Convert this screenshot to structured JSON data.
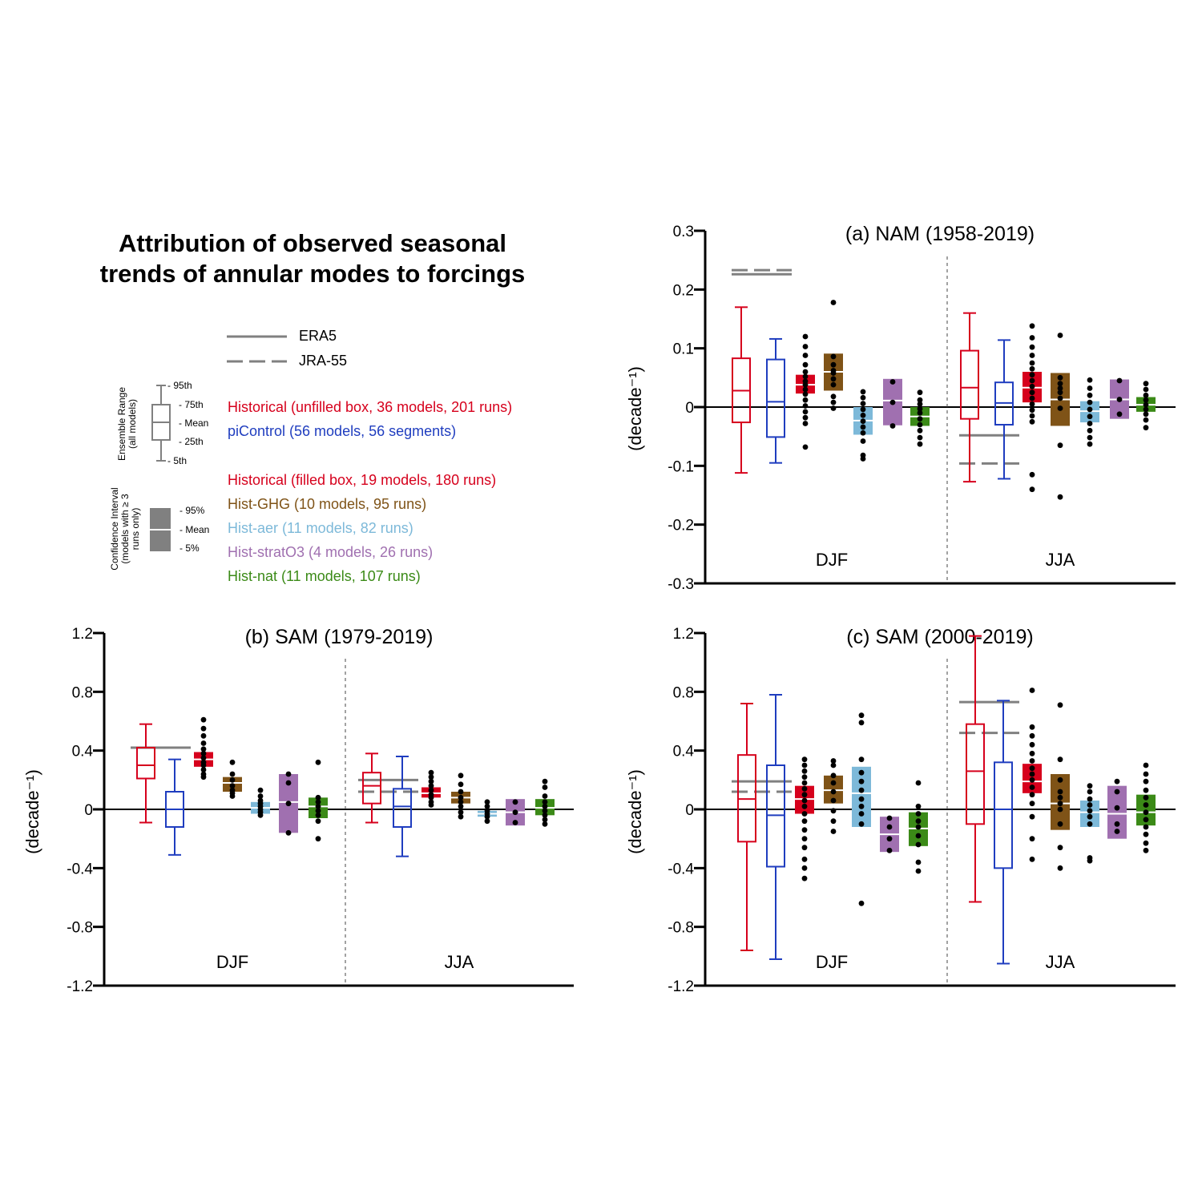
{
  "title": "Attribution of observed seasonal trends of annular modes to forcings",
  "title_lines": [
    "Attribution of observed seasonal",
    "trends of annular modes to forcings"
  ],
  "legend": {
    "observations": [
      {
        "name": "ERA5",
        "style": "solid"
      },
      {
        "name": "JRA-55",
        "style": "dashed"
      }
    ],
    "box_key": {
      "label_lines": [
        "Ensemble Range",
        "(all models)"
      ],
      "marks": [
        "- 95th",
        "- 75th",
        "- Mean",
        "- 25th",
        "- 5th"
      ]
    },
    "ci_key": {
      "label_lines": [
        "Confidence Interval",
        "(models with ≥ 3",
        "runs only)"
      ],
      "marks": [
        "- 95%",
        "- Mean",
        "- 5%"
      ]
    },
    "series": [
      {
        "label": "Historical (unfilled box, 36 models, 201 runs)",
        "color": "#d6001c"
      },
      {
        "label": "piControl (56 models, 56 segments)",
        "color": "#1f3dbf"
      },
      {
        "label": "Historical (filled box, 19 models, 180 runs)",
        "color": "#d6001c"
      },
      {
        "label": "Hist-GHG (10 models, 95 runs)",
        "color": "#7f5317"
      },
      {
        "label": "Hist-aer (11 models, 82 runs)",
        "color": "#7db9d9"
      },
      {
        "label": "Hist-stratO3 (4 models, 26 runs)",
        "color": "#a070b0"
      },
      {
        "label": "Hist-nat (11 models, 107 runs)",
        "color": "#3b8a17"
      }
    ]
  },
  "colors": {
    "historical": "#d6001c",
    "picontrol": "#1f3dbf",
    "ghg": "#7f5317",
    "aer": "#7db9d9",
    "strato3": "#a070b0",
    "nat": "#3b8a17",
    "obs": "#808080"
  },
  "chart_data": [
    {
      "type": "box",
      "title": "(a) NAM (1958-2019)",
      "ylabel": "(decade⁻¹)",
      "ylim": [
        -0.3,
        0.3
      ],
      "yticks": [
        "-0.3",
        "-0.2",
        "-0.1",
        "0",
        "0.1",
        "0.2",
        "0.3"
      ],
      "ytick_values": [
        -0.3,
        -0.2,
        -0.1,
        0,
        0.1,
        0.2,
        0.3
      ],
      "seasons": [
        "DJF",
        "JJA"
      ],
      "groups": [
        {
          "season": "DJF",
          "obs": {
            "era5": 0.226,
            "jra55": 0.233
          },
          "boxes": [
            {
              "series": "historical",
              "p5": -0.112,
              "p25": -0.026,
              "mean": 0.028,
              "p75": 0.083,
              "p95": 0.17
            },
            {
              "series": "picontrol",
              "p5": -0.095,
              "p25": -0.051,
              "mean": 0.009,
              "p75": 0.081,
              "p95": 0.116
            }
          ],
          "ci": [
            {
              "series": "historical",
              "low": 0.023,
              "mean": 0.038,
              "high": 0.055,
              "dots": [
                0.12,
                0.103,
                0.088,
                0.072,
                0.06,
                0.052,
                0.044,
                0.038,
                0.03,
                0.022,
                0.012,
                0.002,
                -0.008,
                -0.018,
                -0.028,
                -0.068
              ]
            },
            {
              "series": "ghg",
              "low": 0.028,
              "mean": 0.06,
              "high": 0.091,
              "dots": [
                0.178,
                0.086,
                0.072,
                0.062,
                0.058,
                0.048,
                0.038,
                0.018,
                0.008,
                -0.002
              ]
            },
            {
              "series": "aer",
              "low": -0.047,
              "mean": -0.023,
              "high": 0.0,
              "dots": [
                0.026,
                0.016,
                0.006,
                -0.004,
                -0.014,
                -0.024,
                -0.034,
                -0.044,
                -0.058,
                -0.082,
                -0.088
              ]
            },
            {
              "series": "strato3",
              "low": -0.031,
              "mean": 0.011,
              "high": 0.048,
              "dots": [
                0.043,
                0.008,
                -0.032
              ]
            },
            {
              "series": "nat",
              "low": -0.032,
              "mean": -0.016,
              "high": 0.0,
              "dots": [
                0.025,
                0.012,
                0.005,
                -0.003,
                -0.01,
                -0.02,
                -0.03,
                -0.04,
                -0.052,
                -0.063
              ]
            }
          ]
        },
        {
          "season": "JJA",
          "obs": {
            "era5": -0.048,
            "jra55": -0.096
          },
          "boxes": [
            {
              "series": "historical",
              "p5": -0.127,
              "p25": -0.02,
              "mean": 0.033,
              "p75": 0.096,
              "p95": 0.16
            },
            {
              "series": "picontrol",
              "p5": -0.122,
              "p25": -0.03,
              "mean": 0.007,
              "p75": 0.042,
              "p95": 0.114
            }
          ],
          "ci": [
            {
              "series": "historical",
              "low": 0.008,
              "mean": 0.033,
              "high": 0.06,
              "dots": [
                0.138,
                0.118,
                0.102,
                0.088,
                0.075,
                0.065,
                0.055,
                0.045,
                0.035,
                0.025,
                0.015,
                0.005,
                -0.005,
                -0.015,
                -0.025,
                -0.115,
                -0.14
              ]
            },
            {
              "series": "ghg",
              "low": -0.032,
              "mean": 0.013,
              "high": 0.058,
              "dots": [
                0.122,
                0.05,
                0.04,
                0.032,
                0.025,
                0.015,
                -0.002,
                -0.065,
                -0.153
              ]
            },
            {
              "series": "aer",
              "low": -0.026,
              "mean": -0.007,
              "high": 0.01,
              "dots": [
                0.046,
                0.032,
                0.02,
                0.008,
                -0.004,
                -0.016,
                -0.028,
                -0.04,
                -0.052,
                -0.063
              ]
            },
            {
              "series": "strato3",
              "low": -0.02,
              "mean": 0.013,
              "high": 0.047,
              "dots": [
                0.045,
                0.013,
                -0.012
              ]
            },
            {
              "series": "nat",
              "low": -0.008,
              "mean": 0.004,
              "high": 0.017,
              "dots": [
                0.04,
                0.03,
                0.02,
                0.012,
                0.004,
                -0.004,
                -0.012,
                -0.022,
                -0.035
              ]
            }
          ]
        }
      ]
    },
    {
      "type": "box",
      "title": "(b) SAM (1979-2019)",
      "ylabel": "(decade⁻¹)",
      "ylim": [
        -1.2,
        1.2
      ],
      "yticks": [
        "-1.2",
        "-0.8",
        "-0.4",
        "0",
        "0.4",
        "0.8",
        "1.2"
      ],
      "ytick_values": [
        -1.2,
        -0.8,
        -0.4,
        0,
        0.4,
        0.8,
        1.2
      ],
      "seasons": [
        "DJF",
        "JJA"
      ],
      "groups": [
        {
          "season": "DJF",
          "obs": {
            "era5": 0.42,
            "jra55": 0.42
          },
          "boxes": [
            {
              "series": "historical",
              "p5": -0.09,
              "p25": 0.21,
              "mean": 0.3,
              "p75": 0.42,
              "p95": 0.58
            },
            {
              "series": "picontrol",
              "p5": -0.31,
              "p25": -0.12,
              "mean": 0.0,
              "p75": 0.12,
              "p95": 0.34
            }
          ],
          "ci": [
            {
              "series": "historical",
              "low": 0.29,
              "mean": 0.34,
              "high": 0.39,
              "dots": [
                0.61,
                0.55,
                0.5,
                0.45,
                0.41,
                0.38,
                0.35,
                0.32,
                0.3,
                0.27,
                0.24,
                0.22
              ]
            },
            {
              "series": "ghg",
              "low": 0.12,
              "mean": 0.18,
              "high": 0.22,
              "dots": [
                0.32,
                0.24,
                0.2,
                0.16,
                0.13,
                0.11,
                0.09
              ]
            },
            {
              "series": "aer",
              "low": -0.03,
              "mean": 0.01,
              "high": 0.05,
              "dots": [
                0.13,
                0.09,
                0.06,
                0.04,
                0.02,
                0.0,
                -0.02,
                -0.04
              ]
            },
            {
              "series": "strato3",
              "low": -0.16,
              "mean": 0.05,
              "high": 0.24,
              "dots": [
                0.24,
                0.18,
                0.04,
                -0.16
              ]
            },
            {
              "series": "nat",
              "low": -0.06,
              "mean": 0.02,
              "high": 0.08,
              "dots": [
                0.32,
                0.08,
                0.05,
                0.02,
                -0.01,
                -0.04,
                -0.08,
                -0.2
              ]
            }
          ]
        },
        {
          "season": "JJA",
          "obs": {
            "era5": 0.2,
            "jra55": 0.12
          },
          "boxes": [
            {
              "series": "historical",
              "p5": -0.09,
              "p25": 0.04,
              "mean": 0.16,
              "p75": 0.25,
              "p95": 0.38
            },
            {
              "series": "picontrol",
              "p5": -0.32,
              "p25": -0.12,
              "mean": 0.02,
              "p75": 0.14,
              "p95": 0.36
            }
          ],
          "ci": [
            {
              "series": "historical",
              "low": 0.08,
              "mean": 0.11,
              "high": 0.15,
              "dots": [
                0.25,
                0.22,
                0.19,
                0.16,
                0.13,
                0.1,
                0.08,
                0.05,
                0.03
              ]
            },
            {
              "series": "ghg",
              "low": 0.04,
              "mean": 0.08,
              "high": 0.12,
              "dots": [
                0.23,
                0.17,
                0.12,
                0.08,
                0.05,
                0.02,
                -0.02,
                -0.05
              ]
            },
            {
              "series": "aer",
              "low": -0.05,
              "mean": -0.03,
              "high": -0.01,
              "dots": [
                0.05,
                0.02,
                -0.01,
                -0.03,
                -0.05,
                -0.08
              ]
            },
            {
              "series": "strato3",
              "low": -0.11,
              "mean": -0.02,
              "high": 0.07,
              "dots": [
                0.05,
                -0.02,
                -0.09
              ]
            },
            {
              "series": "nat",
              "low": -0.04,
              "mean": 0.01,
              "high": 0.07,
              "dots": [
                0.19,
                0.15,
                0.09,
                0.05,
                0.02,
                -0.01,
                -0.04,
                -0.07,
                -0.1
              ]
            }
          ]
        }
      ]
    },
    {
      "type": "box",
      "title": "(c) SAM (2000-2019)",
      "ylabel": "(decade⁻¹)",
      "ylim": [
        -1.2,
        1.2
      ],
      "yticks": [
        "-1.2",
        "-0.8",
        "-0.4",
        "0",
        "0.4",
        "0.8",
        "1.2"
      ],
      "ytick_values": [
        -1.2,
        -0.8,
        -0.4,
        0,
        0.4,
        0.8,
        1.2
      ],
      "seasons": [
        "DJF",
        "JJA"
      ],
      "groups": [
        {
          "season": "DJF",
          "obs": {
            "era5": 0.19,
            "jra55": 0.12
          },
          "boxes": [
            {
              "series": "historical",
              "p5": -0.96,
              "p25": -0.22,
              "mean": 0.07,
              "p75": 0.37,
              "p95": 0.72
            },
            {
              "series": "picontrol",
              "p5": -1.02,
              "p25": -0.39,
              "mean": -0.04,
              "p75": 0.3,
              "p95": 0.78
            }
          ],
          "ci": [
            {
              "series": "historical",
              "low": -0.03,
              "mean": 0.07,
              "high": 0.16,
              "dots": [
                0.34,
                0.3,
                0.26,
                0.22,
                0.18,
                0.14,
                0.1,
                0.06,
                0.02,
                -0.03,
                -0.08,
                -0.14,
                -0.2,
                -0.26,
                -0.34,
                -0.4,
                -0.47
              ]
            },
            {
              "series": "ghg",
              "low": 0.04,
              "mean": 0.13,
              "high": 0.23,
              "dots": [
                0.33,
                0.3,
                0.23,
                0.18,
                0.12,
                0.06,
                -0.01,
                -0.08,
                -0.15
              ]
            },
            {
              "series": "aer",
              "low": -0.12,
              "mean": 0.11,
              "high": 0.29,
              "dots": [
                0.64,
                0.59,
                0.34,
                0.25,
                0.19,
                0.13,
                0.07,
                0.02,
                -0.03,
                -0.1,
                -0.64
              ]
            },
            {
              "series": "strato3",
              "low": -0.29,
              "mean": -0.17,
              "high": -0.05,
              "dots": [
                -0.06,
                -0.12,
                -0.2,
                -0.28
              ]
            },
            {
              "series": "nat",
              "low": -0.25,
              "mean": -0.13,
              "high": -0.02,
              "dots": [
                0.18,
                0.02,
                -0.03,
                -0.08,
                -0.12,
                -0.18,
                -0.24,
                -0.36,
                -0.42
              ]
            }
          ]
        },
        {
          "season": "JJA",
          "obs": {
            "era5": 0.73,
            "jra55": 0.52
          },
          "boxes": [
            {
              "series": "historical",
              "p5": -0.63,
              "p25": -0.1,
              "mean": 0.26,
              "p75": 0.58,
              "p95": 1.18
            },
            {
              "series": "picontrol",
              "p5": -1.05,
              "p25": -0.4,
              "mean": 0.0,
              "p75": 0.32,
              "p95": 0.74
            }
          ],
          "ci": [
            {
              "series": "historical",
              "low": 0.11,
              "mean": 0.19,
              "high": 0.31,
              "dots": [
                0.81,
                0.56,
                0.5,
                0.44,
                0.38,
                0.33,
                0.28,
                0.24,
                0.2,
                0.15,
                0.1,
                0.04,
                -0.05,
                -0.2,
                -0.34
              ]
            },
            {
              "series": "ghg",
              "low": -0.14,
              "mean": 0.04,
              "high": 0.24,
              "dots": [
                0.71,
                0.34,
                0.2,
                0.12,
                0.08,
                0.04,
                0.0,
                -0.1,
                -0.26,
                -0.4
              ]
            },
            {
              "series": "aer",
              "low": -0.12,
              "mean": -0.02,
              "high": 0.06,
              "dots": [
                0.16,
                0.12,
                0.07,
                0.03,
                -0.01,
                -0.05,
                -0.1,
                -0.33,
                -0.35
              ]
            },
            {
              "series": "strato3",
              "low": -0.2,
              "mean": -0.03,
              "high": 0.16,
              "dots": [
                0.19,
                0.12,
                0.01,
                -0.1,
                -0.15
              ]
            },
            {
              "series": "nat",
              "low": -0.11,
              "mean": -0.02,
              "high": 0.1,
              "dots": [
                0.3,
                0.24,
                0.19,
                0.13,
                0.08,
                0.03,
                -0.02,
                -0.07,
                -0.12,
                -0.17,
                -0.23,
                -0.28
              ]
            }
          ]
        }
      ]
    }
  ]
}
